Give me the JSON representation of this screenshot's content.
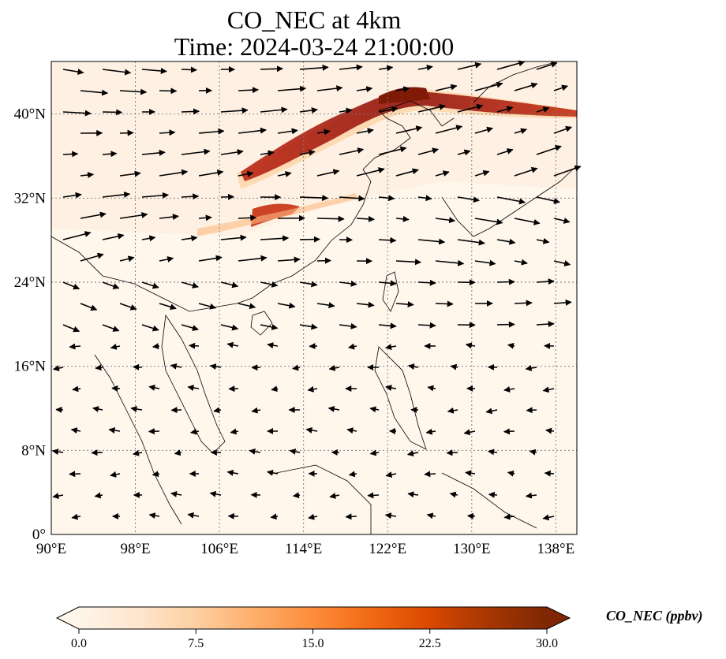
{
  "title": {
    "line1": "CO_NEC at 4km",
    "line2": "Time: 2024-03-24 21:00:00"
  },
  "map": {
    "extent": {
      "lon_min": 90,
      "lon_max": 140,
      "lat_min": 0,
      "lat_max": 45
    },
    "lon_ticks": [
      {
        "value": 90,
        "label": "90°E"
      },
      {
        "value": 98,
        "label": "98°E"
      },
      {
        "value": 106,
        "label": "106°E"
      },
      {
        "value": 114,
        "label": "114°E"
      },
      {
        "value": 122,
        "label": "122°E"
      },
      {
        "value": 130,
        "label": "130°E"
      },
      {
        "value": 138,
        "label": "138°E"
      }
    ],
    "lat_ticks": [
      {
        "value": 0,
        "label": "0°"
      },
      {
        "value": 8,
        "label": "8°N"
      },
      {
        "value": 16,
        "label": "16°N"
      },
      {
        "value": 24,
        "label": "24°N"
      },
      {
        "value": 32,
        "label": "32°N"
      },
      {
        "value": 40,
        "label": "40°N"
      }
    ],
    "gridlines": true
  },
  "colorbar": {
    "label": "CO_NEC (ppbv)",
    "ticks": [
      "0.0",
      "7.5",
      "15.0",
      "22.5",
      "30.0"
    ],
    "min": 0,
    "max": 30,
    "colors": [
      "#fff5eb",
      "#fee6ce",
      "#fdd0a2",
      "#fdae6b",
      "#fd8d3c",
      "#f16913",
      "#d94801",
      "#a63603",
      "#7f2704"
    ],
    "extend": "both"
  }
}
